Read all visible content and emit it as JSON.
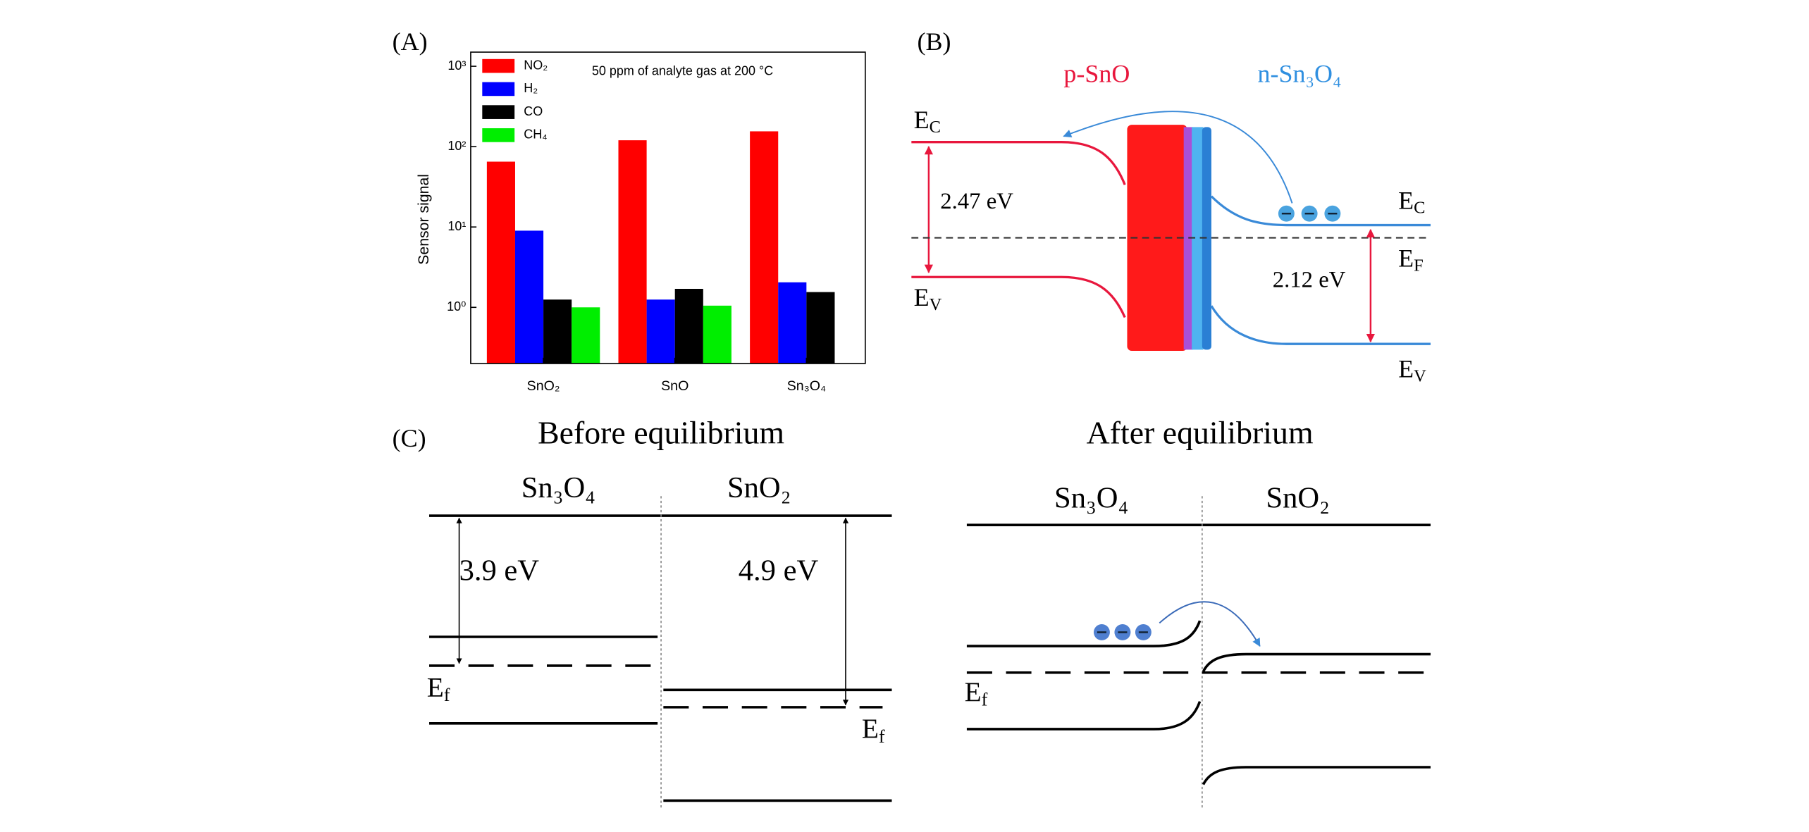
{
  "chart_data": {
    "type": "bar",
    "annotation": "50 ppm of analyte gas at 200 °C",
    "ylabel": "Sensor signal",
    "categories": [
      "SnO₂",
      "SnO",
      "Sn₃O₄"
    ],
    "series": [
      {
        "name": "NO₂",
        "color": "#ff0000",
        "values": [
          65,
          120,
          155
        ]
      },
      {
        "name": "H₂",
        "color": "#0000ff",
        "values": [
          9,
          1.25,
          2.05
        ]
      },
      {
        "name": "CO",
        "color": "#000000",
        "values": [
          1.25,
          1.7,
          1.55
        ]
      },
      {
        "name": "CH₄",
        "color": "#00ee00",
        "values": [
          1.0,
          1.05,
          null
        ]
      }
    ],
    "yscale": "log",
    "ylim": [
      0.2,
      1500
    ],
    "yticks": [
      {
        "value": 1,
        "label": "10⁰"
      },
      {
        "value": 10,
        "label": "10¹"
      },
      {
        "value": 100,
        "label": "10²"
      },
      {
        "value": 1000,
        "label": "10³"
      }
    ],
    "legend": "upper left"
  },
  "panel_labels": [
    "(A)",
    "(B)",
    "(C)"
  ],
  "diagram_b": {
    "p_label": "p-SnO",
    "n_label": "n-Sn₃O₄",
    "left_gap": "2.47 eV",
    "right_gap": "2.12 eV",
    "levels": [
      {
        "main": "E",
        "sub": "C"
      },
      {
        "main": "E",
        "sub": "V"
      },
      {
        "main": "E",
        "sub": "C"
      },
      {
        "main": "E",
        "sub": "F"
      },
      {
        "main": "E",
        "sub": "V"
      }
    ]
  },
  "diagram_c": {
    "before": {
      "title": "Before equilibrium",
      "left": "Sn₃O₄",
      "right": "SnO₂",
      "left_gap": "3.9 eV",
      "right_gap": "4.9 eV",
      "fermi": [
        {
          "main": "E",
          "sub": "f"
        },
        {
          "main": "E",
          "sub": "f"
        }
      ]
    },
    "after": {
      "title": "After equilibrium",
      "left": "Sn₃O₄",
      "right": "SnO₂",
      "fermi": {
        "main": "E",
        "sub": "f"
      }
    }
  }
}
